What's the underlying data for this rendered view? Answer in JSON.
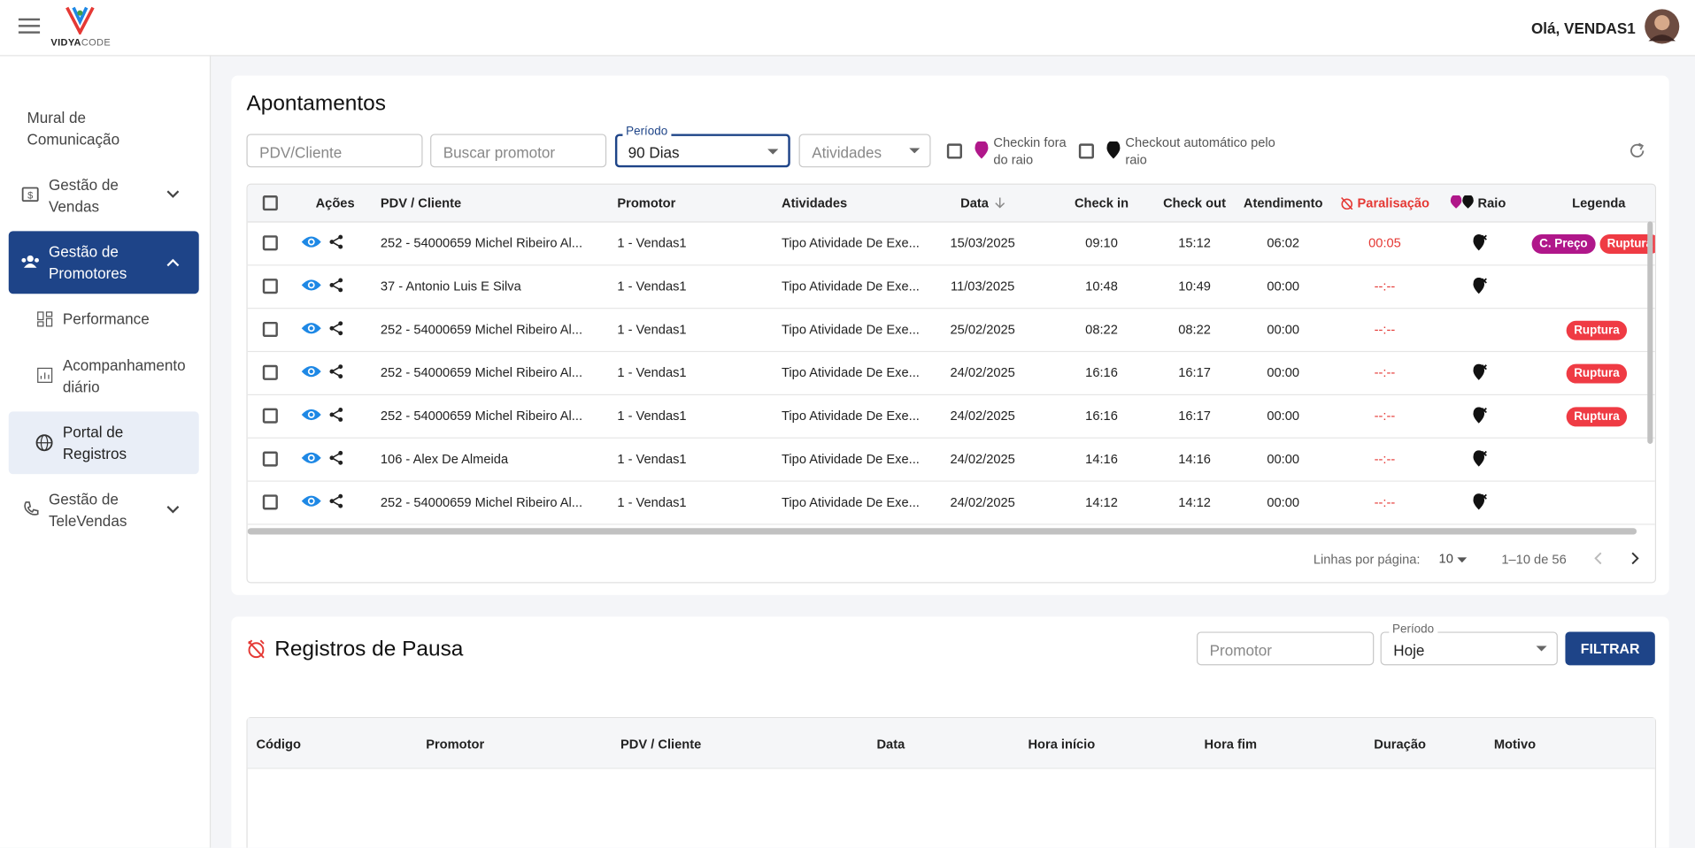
{
  "header": {
    "logo_bold": "VIDYA",
    "logo_light": "CODE",
    "greeting": "Olá, VENDAS1"
  },
  "sidebar": {
    "items": [
      {
        "label": "Mural de Comunicação"
      },
      {
        "label": "Gestão de Vendas"
      },
      {
        "label": "Gestão de Promotores",
        "children": [
          "Performance",
          "Acompanhamento diário",
          "Portal de Registros"
        ]
      },
      {
        "label": "Gestão de TeleVendas"
      }
    ]
  },
  "apontamentos": {
    "title": "Apontamentos",
    "filters": {
      "pdv": "PDV/Cliente",
      "promotor": "Buscar promotor",
      "periodo_label": "Período",
      "periodo_value": "90 Dias",
      "atividades": "Atividades",
      "checkin": "Checkin fora do raio",
      "checkout": "Checkout automático pelo raio"
    },
    "columns": [
      "Ações",
      "PDV / Cliente",
      "Promotor",
      "Atividades",
      "Data",
      "Check in",
      "Check out",
      "Atendimento",
      "Paralisação",
      "Raio",
      "Legenda"
    ],
    "rows": [
      {
        "pdv": "252 - 54000659 Michel Ribeiro Al...",
        "promotor": "1 - Vendas1",
        "atividade": "Tipo Atividade De Exe...",
        "data": "15/03/2025",
        "checkin": "09:10",
        "checkout": "15:12",
        "atendimento": "06:02",
        "paralisacao": "00:05",
        "raio": true,
        "tags": [
          "C. Preço",
          "Ruptura"
        ]
      },
      {
        "pdv": "37 - Antonio Luis E Silva",
        "promotor": "1 - Vendas1",
        "atividade": "Tipo Atividade De Exe...",
        "data": "11/03/2025",
        "checkin": "10:48",
        "checkout": "10:49",
        "atendimento": "00:00",
        "paralisacao": "--:--",
        "raio": true,
        "tags": []
      },
      {
        "pdv": "252 - 54000659 Michel Ribeiro Al...",
        "promotor": "1 - Vendas1",
        "atividade": "Tipo Atividade De Exe...",
        "data": "25/02/2025",
        "checkin": "08:22",
        "checkout": "08:22",
        "atendimento": "00:00",
        "paralisacao": "--:--",
        "raio": false,
        "tags": [
          "Ruptura"
        ]
      },
      {
        "pdv": "252 - 54000659 Michel Ribeiro Al...",
        "promotor": "1 - Vendas1",
        "atividade": "Tipo Atividade De Exe...",
        "data": "24/02/2025",
        "checkin": "16:16",
        "checkout": "16:17",
        "atendimento": "00:00",
        "paralisacao": "--:--",
        "raio": true,
        "tags": [
          "Ruptura"
        ]
      },
      {
        "pdv": "252 - 54000659 Michel Ribeiro Al...",
        "promotor": "1 - Vendas1",
        "atividade": "Tipo Atividade De Exe...",
        "data": "24/02/2025",
        "checkin": "16:16",
        "checkout": "16:17",
        "atendimento": "00:00",
        "paralisacao": "--:--",
        "raio": true,
        "tags": [
          "Ruptura"
        ]
      },
      {
        "pdv": "106 - Alex De Almeida",
        "promotor": "1 - Vendas1",
        "atividade": "Tipo Atividade De Exe...",
        "data": "24/02/2025",
        "checkin": "14:16",
        "checkout": "14:16",
        "atendimento": "00:00",
        "paralisacao": "--:--",
        "raio": true,
        "tags": []
      },
      {
        "pdv": "252 - 54000659 Michel Ribeiro Al...",
        "promotor": "1 - Vendas1",
        "atividade": "Tipo Atividade De Exe...",
        "data": "24/02/2025",
        "checkin": "14:12",
        "checkout": "14:12",
        "atendimento": "00:00",
        "paralisacao": "--:--",
        "raio": true,
        "tags": []
      }
    ],
    "pagination": {
      "label": "Linhas por página:",
      "per_page": "10",
      "range": "1–10 de 56"
    }
  },
  "pausa": {
    "title": "Registros de Pausa",
    "promotor": "Promotor",
    "periodo_label": "Período",
    "periodo_value": "Hoje",
    "button": "FILTRAR",
    "columns": [
      "Código",
      "Promotor",
      "PDV / Cliente",
      "Data",
      "Hora início",
      "Hora fim",
      "Duração",
      "Motivo"
    ]
  }
}
